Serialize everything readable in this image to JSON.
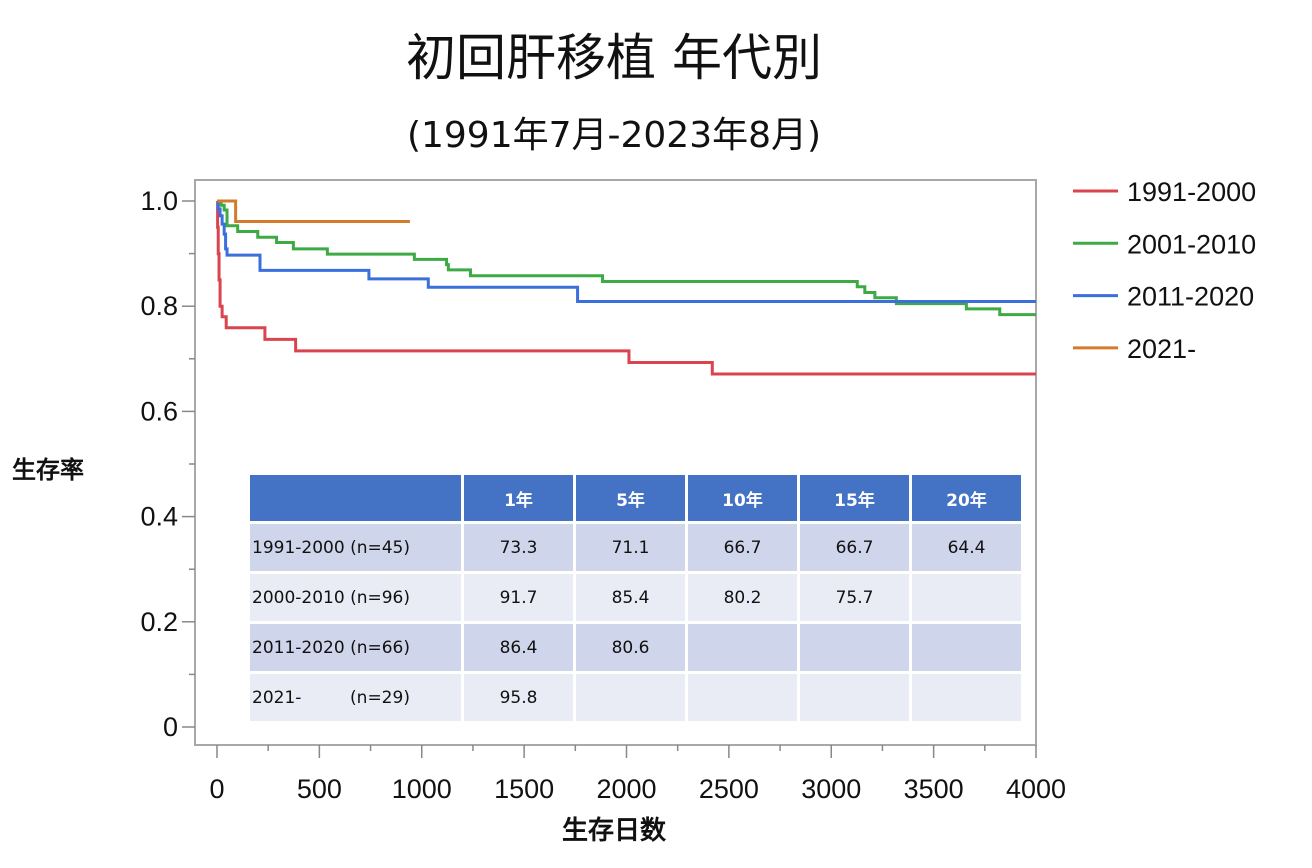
{
  "chart_data": {
    "type": "line",
    "subtype": "kaplan-meier-step",
    "title": "初回肝移植 年代別",
    "subtitle": "(1991年7月-2023年8月)",
    "xlabel": "生存日数",
    "ylabel": "生存率",
    "xlim": [
      0,
      4000
    ],
    "ylim": [
      0,
      1.0
    ],
    "xticks": [
      0,
      500,
      1000,
      1500,
      2000,
      2500,
      3000,
      3500,
      4000
    ],
    "yticks": [
      0,
      0.2,
      0.4,
      0.6,
      0.8,
      1.0
    ],
    "ytick_labels": [
      "0",
      "0.2",
      "0.4",
      "0.6",
      "0.8",
      "1.0"
    ],
    "legend_position": "right",
    "series": [
      {
        "name": "1991-2000",
        "color": "#D9444F",
        "steps": [
          [
            0,
            1.0
          ],
          [
            3,
            0.95
          ],
          [
            6,
            0.9
          ],
          [
            10,
            0.85
          ],
          [
            15,
            0.8
          ],
          [
            25,
            0.78
          ],
          [
            45,
            0.759
          ],
          [
            234,
            0.737
          ],
          [
            384,
            0.715
          ],
          [
            2012,
            0.693
          ],
          [
            2419,
            0.671
          ]
        ],
        "end": 4000
      },
      {
        "name": "2001-2010",
        "color": "#3DAA44",
        "steps": [
          [
            0,
            1.0
          ],
          [
            20,
            0.992
          ],
          [
            35,
            0.983
          ],
          [
            49,
            0.953
          ],
          [
            101,
            0.942
          ],
          [
            199,
            0.931
          ],
          [
            291,
            0.921
          ],
          [
            373,
            0.909
          ],
          [
            539,
            0.899
          ],
          [
            964,
            0.889
          ],
          [
            1121,
            0.879
          ],
          [
            1130,
            0.869
          ],
          [
            1238,
            0.858
          ],
          [
            1883,
            0.847
          ],
          [
            3127,
            0.837
          ],
          [
            3164,
            0.826
          ],
          [
            3213,
            0.816
          ],
          [
            3318,
            0.805
          ],
          [
            3660,
            0.795
          ],
          [
            3823,
            0.784
          ]
        ],
        "end": 4000
      },
      {
        "name": "2011-2020",
        "color": "#3B6FDB",
        "steps": [
          [
            0,
            1.0
          ],
          [
            5,
            0.985
          ],
          [
            15,
            0.972
          ],
          [
            25,
            0.956
          ],
          [
            35,
            0.937
          ],
          [
            42,
            0.909
          ],
          [
            49,
            0.897
          ],
          [
            210,
            0.868
          ],
          [
            742,
            0.852
          ],
          [
            1032,
            0.836
          ],
          [
            1761,
            0.809
          ]
        ],
        "end": 4000
      },
      {
        "name": "2021-",
        "color": "#D37A2B",
        "steps": [
          [
            0,
            1.0
          ],
          [
            91,
            0.961
          ]
        ],
        "end": 942
      }
    ]
  },
  "table": {
    "headers": [
      "",
      "1年",
      "5年",
      "10年",
      "15年",
      "20年"
    ],
    "rows": [
      {
        "label": "1991-2000 (n=45)",
        "values": [
          "73.3",
          "71.1",
          "66.7",
          "66.7",
          "64.4"
        ]
      },
      {
        "label": "2000-2010 (n=96)",
        "values": [
          "91.7",
          "85.4",
          "80.2",
          "75.7",
          ""
        ]
      },
      {
        "label": "2011-2020 (n=66)",
        "values": [
          "86.4",
          "80.6",
          "",
          "",
          ""
        ]
      },
      {
        "label": "2021-         (n=29)",
        "values": [
          "95.8",
          "",
          "",
          "",
          ""
        ]
      }
    ]
  }
}
